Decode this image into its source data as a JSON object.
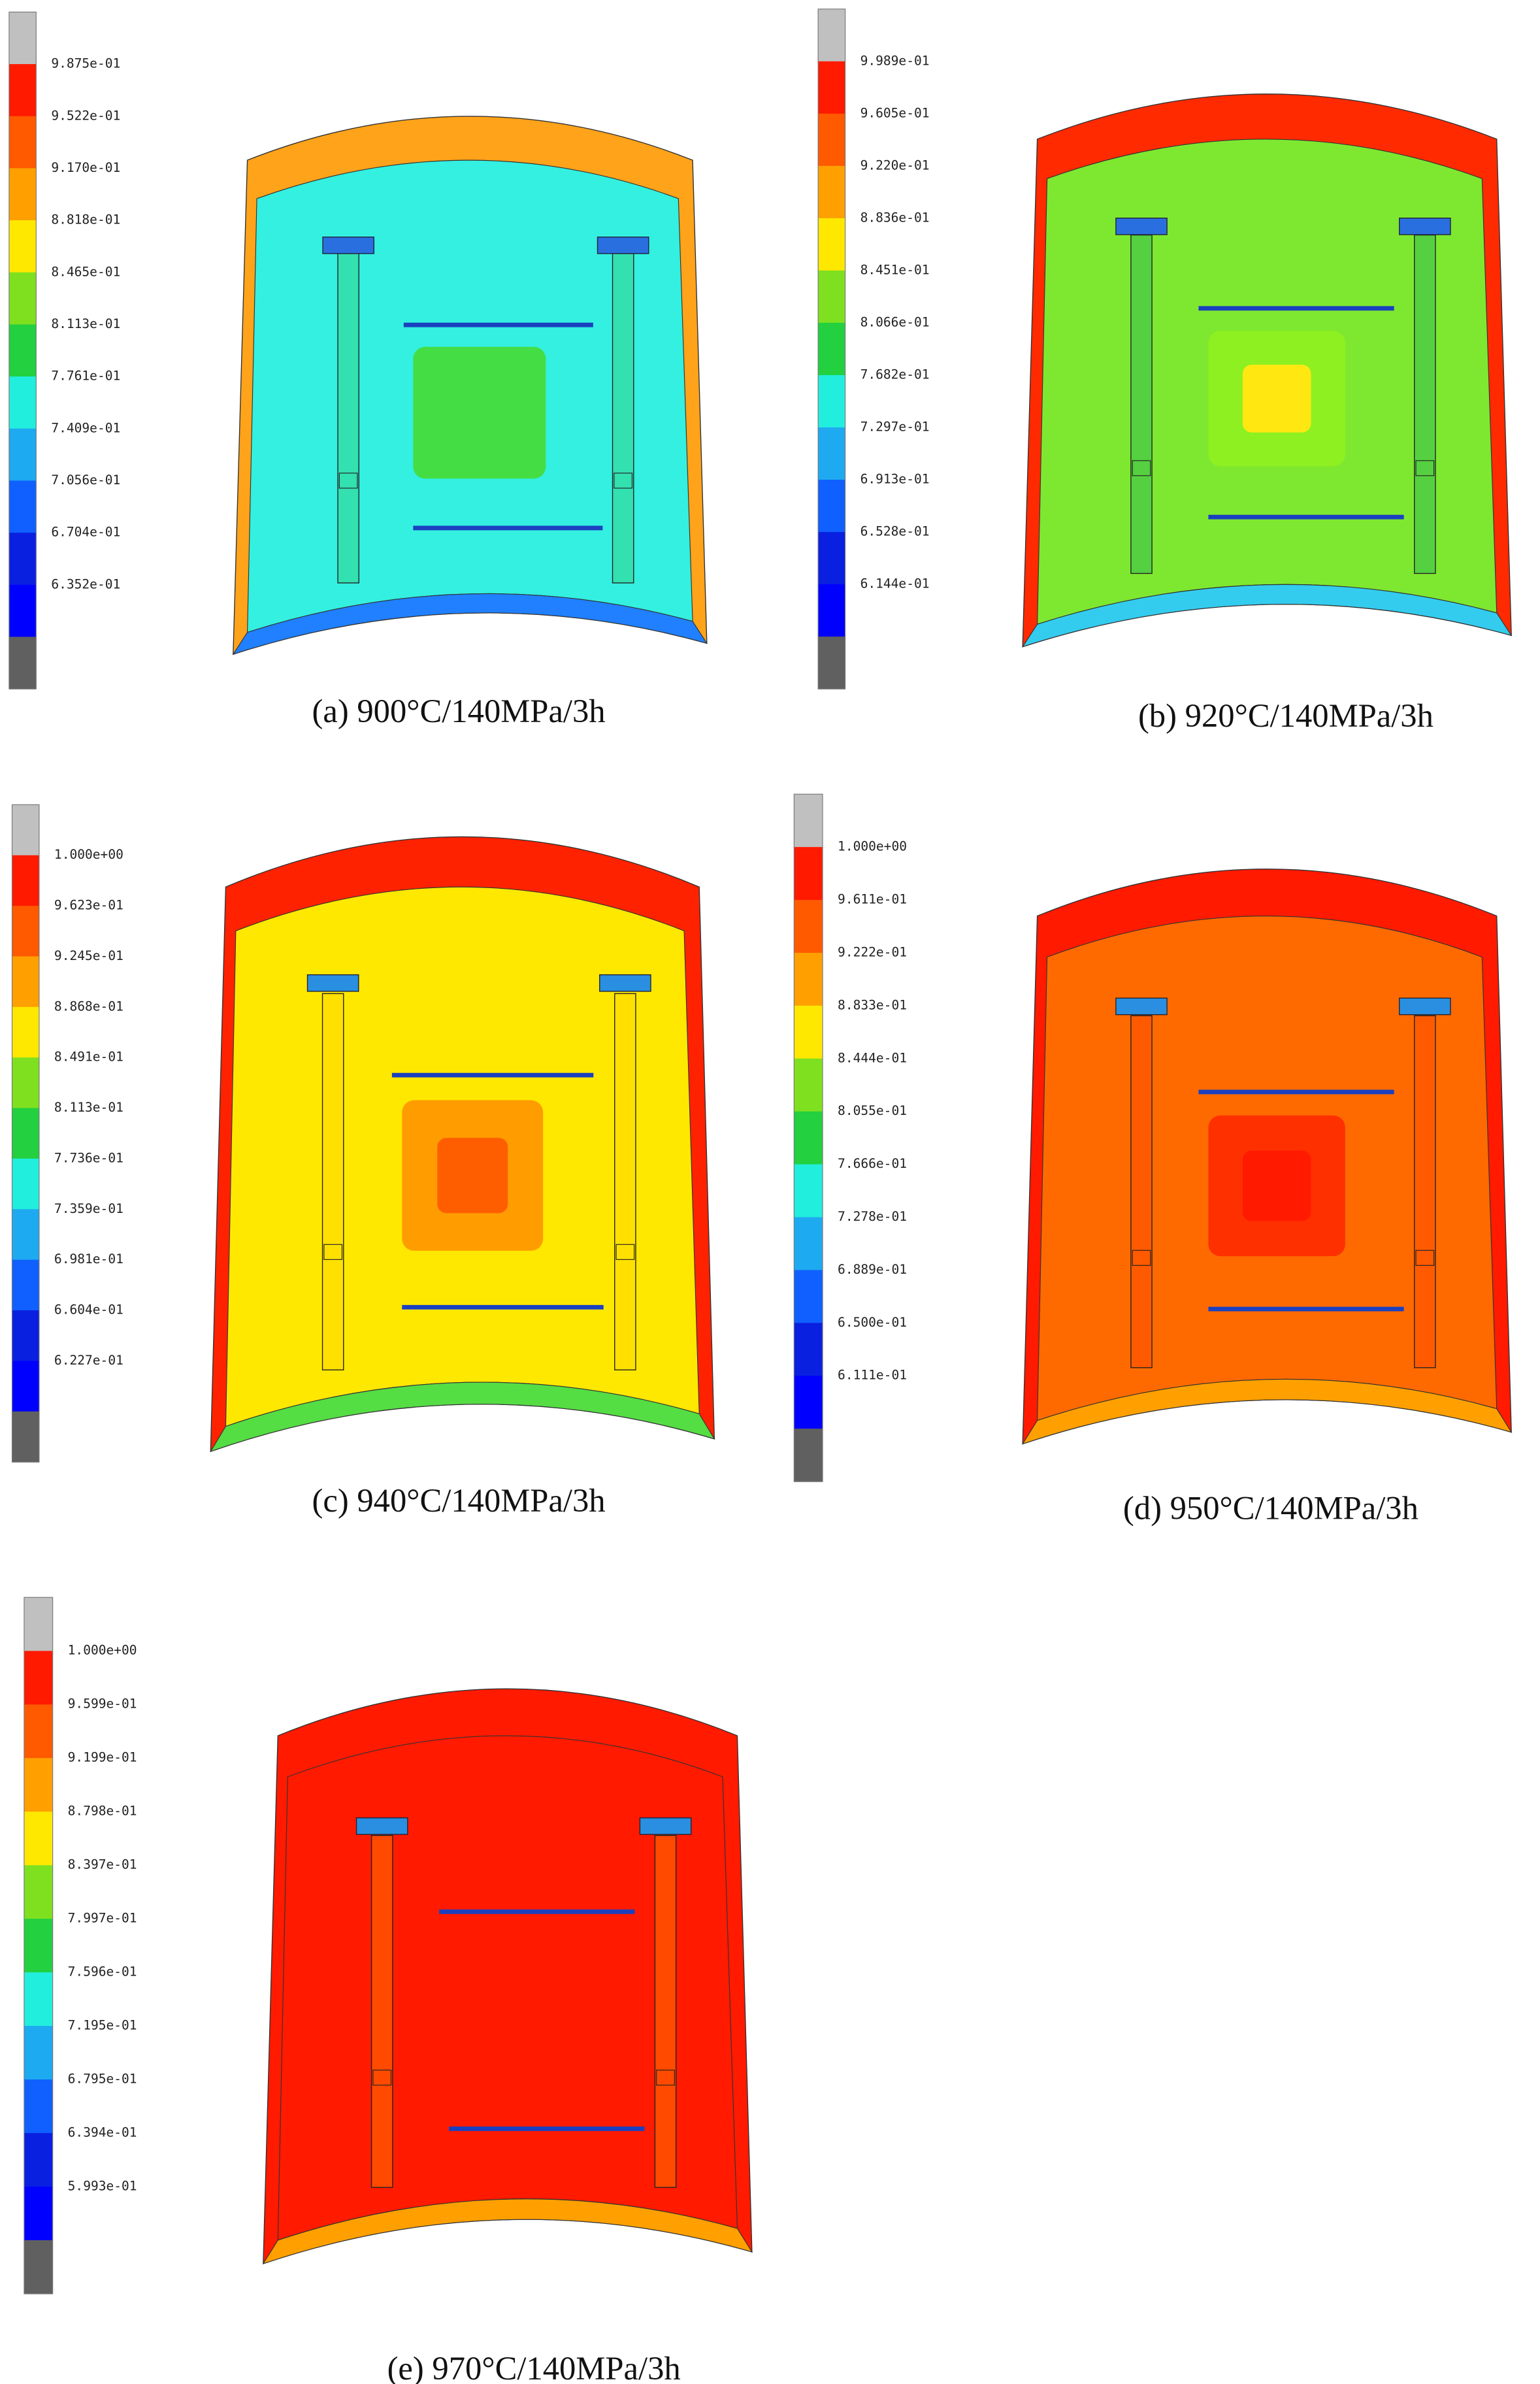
{
  "panels": [
    {
      "caption": "(a) 900°C/140MPa/3h",
      "legend": [
        "9.875e-01",
        "9.522e-01",
        "9.170e-01",
        "8.818e-01",
        "8.465e-01",
        "8.113e-01",
        "7.761e-01",
        "7.409e-01",
        "7.056e-01",
        "6.704e-01",
        "6.352e-01"
      ]
    },
    {
      "caption": "(b) 920°C/140MPa/3h",
      "legend": [
        "9.989e-01",
        "9.605e-01",
        "9.220e-01",
        "8.836e-01",
        "8.451e-01",
        "8.066e-01",
        "7.682e-01",
        "7.297e-01",
        "6.913e-01",
        "6.528e-01",
        "6.144e-01"
      ]
    },
    {
      "caption": "(c) 940°C/140MPa/3h",
      "legend": [
        "1.000e+00",
        "9.623e-01",
        "9.245e-01",
        "8.868e-01",
        "8.491e-01",
        "8.113e-01",
        "7.736e-01",
        "7.359e-01",
        "6.981e-01",
        "6.604e-01",
        "6.227e-01"
      ]
    },
    {
      "caption": "(d) 950°C/140MPa/3h",
      "legend": [
        "1.000e+00",
        "9.611e-01",
        "9.222e-01",
        "8.833e-01",
        "8.444e-01",
        "8.055e-01",
        "7.666e-01",
        "7.278e-01",
        "6.889e-01",
        "6.500e-01",
        "6.111e-01"
      ]
    },
    {
      "caption": "(e) 970°C/140MPa/3h",
      "legend": [
        "1.000e+00",
        "9.599e-01",
        "9.199e-01",
        "8.798e-01",
        "8.397e-01",
        "7.997e-01",
        "7.596e-01",
        "7.195e-01",
        "6.795e-01",
        "6.394e-01",
        "5.993e-01"
      ]
    }
  ]
}
